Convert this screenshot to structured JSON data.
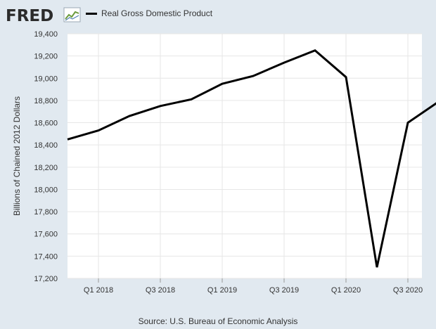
{
  "logo": {
    "text": "FRED",
    "icon": "fred-chart-icon"
  },
  "legend": {
    "label": "Real Gross Domestic Product",
    "color": "#000000"
  },
  "source": "Source: U.S. Bureau of Economic Analysis",
  "chart_data": {
    "type": "line",
    "title": "",
    "xlabel": "",
    "ylabel": "Billions of Chained 2012 Dollars",
    "ylim": [
      17200,
      19400
    ],
    "yticks": [
      17200,
      17400,
      17600,
      17800,
      18000,
      18200,
      18400,
      18600,
      18800,
      19000,
      19200,
      19400
    ],
    "ytick_labels": [
      "17,200",
      "17,400",
      "17,600",
      "17,800",
      "18,000",
      "18,200",
      "18,400",
      "18,600",
      "18,800",
      "19,000",
      "19,200",
      "19,400"
    ],
    "xticks": [
      "Q1 2018",
      "Q3 2018",
      "Q1 2019",
      "Q3 2019",
      "Q1 2020",
      "Q3 2020"
    ],
    "grid": true,
    "series": [
      {
        "name": "Real Gross Domestic Product",
        "color": "#000000",
        "x": [
          "2017-Q4",
          "2018-Q1",
          "2018-Q2",
          "2018-Q3",
          "2018-Q4",
          "2019-Q1",
          "2019-Q2",
          "2019-Q3",
          "2019-Q4",
          "2020-Q1",
          "2020-Q2",
          "2020-Q3",
          "2020-Q4"
        ],
        "values": [
          18450,
          18530,
          18660,
          18750,
          18810,
          18950,
          19020,
          19140,
          19250,
          19010,
          17300,
          18600,
          18790
        ]
      }
    ]
  }
}
